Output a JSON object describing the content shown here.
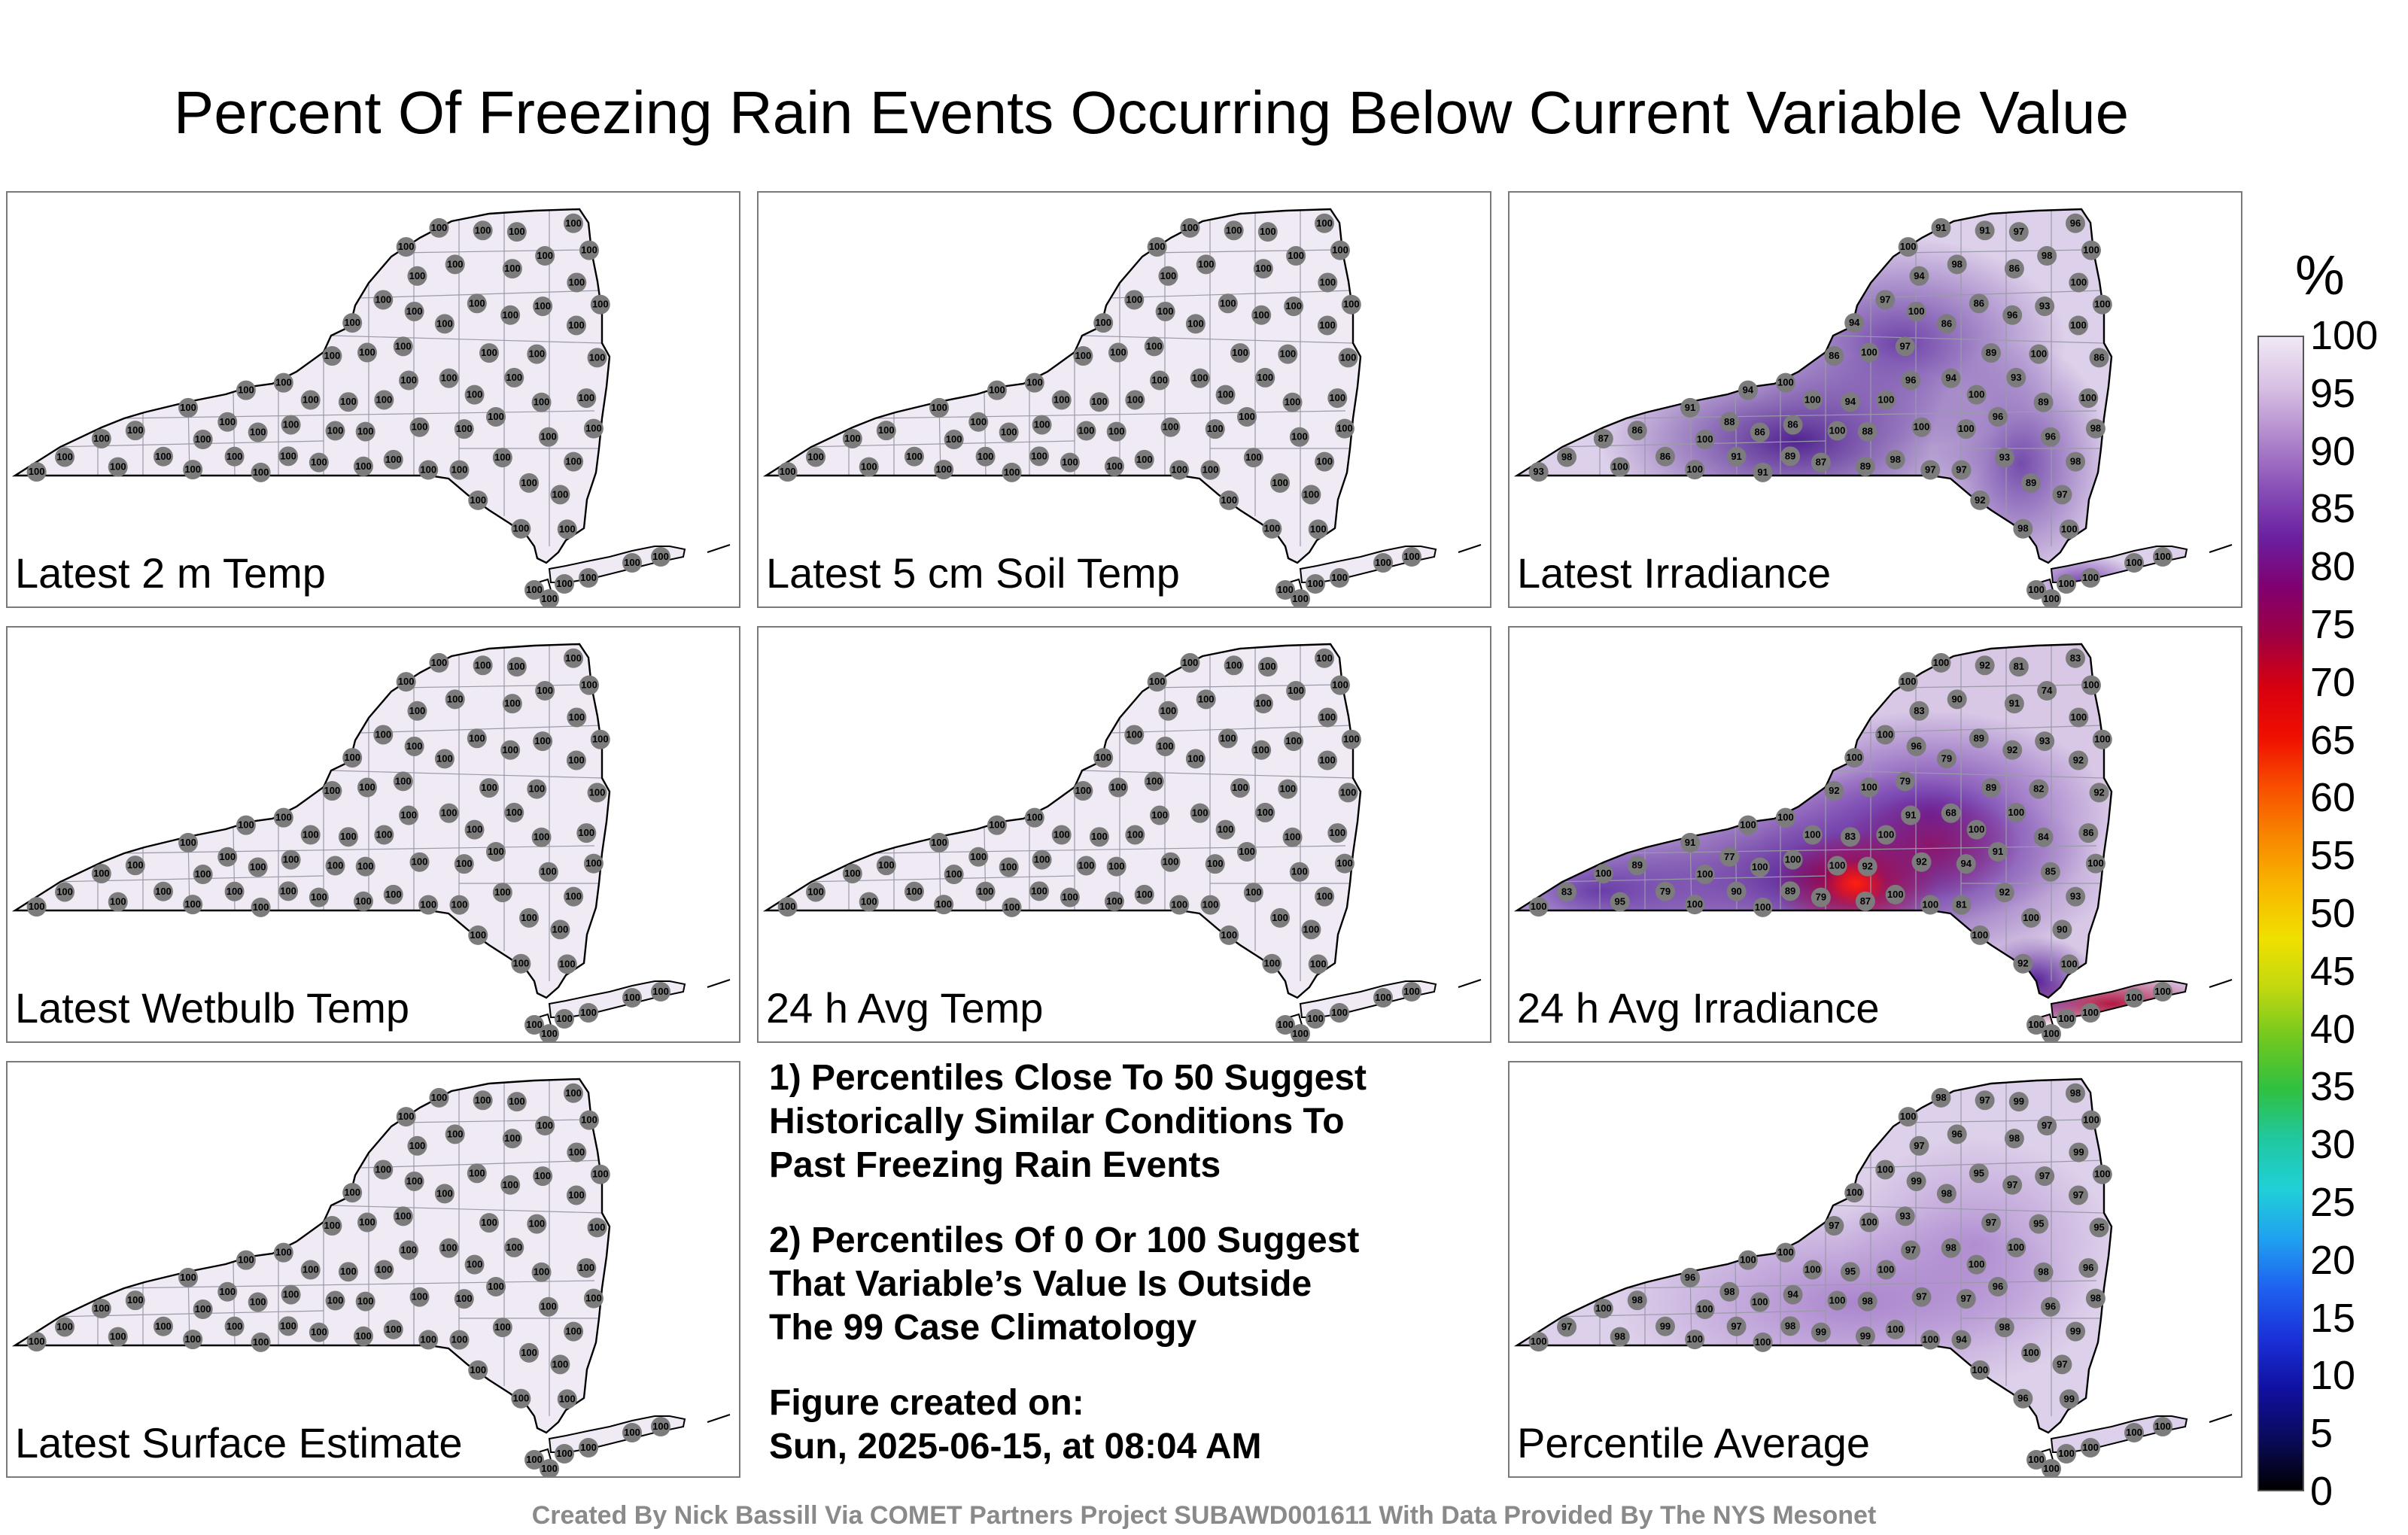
{
  "title": "Percent Of Freezing Rain Events Occurring Below Current Variable Value",
  "panels": [
    {
      "label": "Latest 2 m Temp",
      "mode": "flat",
      "values": []
    },
    {
      "label": "Latest 5 cm Soil Temp",
      "mode": "flat",
      "values": []
    },
    {
      "label": "Latest Irradiance",
      "mode": "irr",
      "values": [
        "100",
        "100",
        "100",
        "100",
        "100",
        "100",
        "100",
        "100",
        "100",
        "100",
        "100",
        "100",
        "98",
        "98",
        "97",
        "93",
        "86",
        "89",
        "86",
        "96",
        "96",
        "100",
        "100",
        "97",
        "97",
        "94",
        "86",
        "86",
        "89",
        "98",
        "98",
        "97",
        "94",
        "89",
        "91",
        "94",
        "93",
        "96",
        "88",
        "91",
        "86",
        "86",
        "88",
        "87",
        "89",
        "96",
        "96",
        "91",
        "98",
        "89",
        "86",
        "86",
        "91",
        "98",
        "97",
        "97",
        "94",
        "93",
        "91",
        "92",
        "94",
        "86",
        "87",
        "93",
        "98",
        "100"
      ]
    },
    {
      "label": "Latest Wetbulb Temp",
      "mode": "flat",
      "values": []
    },
    {
      "label": "24 h Avg Temp",
      "mode": "flat",
      "values": []
    },
    {
      "label": "24 h Avg Irradiance",
      "mode": "avgirr",
      "values": [
        "100",
        "100",
        "100",
        "100",
        "100",
        "100",
        "100",
        "96",
        "95",
        "94",
        "92",
        "92",
        "90",
        "92",
        "90",
        "93",
        "91",
        "89",
        "92",
        "91",
        "85",
        "82",
        "86",
        "79",
        "81",
        "83",
        "89",
        "79",
        "84",
        "83",
        "74",
        "81",
        "68",
        "89",
        "91",
        "83",
        "92",
        "91",
        "92",
        "90",
        "89",
        "79",
        "77",
        "79",
        "87",
        "83",
        "92",
        "92",
        "93",
        "100",
        "92"
      ]
    },
    {
      "label": "Percentile Average",
      "mode": "avg",
      "values": [
        "100",
        "100",
        "100",
        "100",
        "100",
        "99",
        "99",
        "99",
        "98",
        "97",
        "97",
        "97",
        "96",
        "96",
        "97",
        "97",
        "98",
        "98",
        "97",
        "97",
        "96",
        "95",
        "96",
        "93",
        "94",
        "97",
        "98",
        "99",
        "98",
        "97",
        "97",
        "99",
        "98",
        "97",
        "96",
        "95",
        "98",
        "96",
        "98",
        "97",
        "95",
        "98",
        "98",
        "99",
        "99",
        "98",
        "97",
        "97",
        "99",
        "100",
        "95",
        "94",
        "98",
        "98",
        "100"
      ]
    },
    {
      "label": "Latest Surface Estimate",
      "mode": "flat",
      "values": []
    }
  ],
  "station_default": "100",
  "notes": {
    "note1": [
      "1) Percentiles Close To 50 Suggest",
      "Historically Similar Conditions To",
      "Past Freezing Rain Events"
    ],
    "note2": [
      "2) Percentiles Of 0 Or 100 Suggest",
      "That Variable’s Value Is Outside",
      "The 99 Case Climatology"
    ],
    "created_label": "Figure created on:",
    "created_value": "Sun, 2025-06-15, at 08:04 AM"
  },
  "colorbar": {
    "unit": "%",
    "ticks": [
      "100",
      "95",
      "90",
      "85",
      "80",
      "75",
      "70",
      "65",
      "60",
      "55",
      "50",
      "45",
      "40",
      "35",
      "30",
      "25",
      "20",
      "15",
      "10",
      "5",
      "0"
    ],
    "colors": [
      "#000000",
      "#0a0a5a",
      "#1010a0",
      "#1a30d8",
      "#1e60f0",
      "#20a0f0",
      "#20d0d8",
      "#20c8a0",
      "#30c040",
      "#70c820",
      "#c0d810",
      "#f0e000",
      "#f8b800",
      "#f88800",
      "#f85000",
      "#f01000",
      "#d80010",
      "#a00040",
      "#800070",
      "#6a20a0",
      "#8a50b8",
      "#b088cc",
      "#d8c0e4",
      "#f0e8f4"
    ],
    "colors_mode": "gradient stops from 0 (bottom) to 100 (top)"
  },
  "footer": "Created By Nick Bassill Via COMET Partners Project SUBAWD001611 With Data Provided By The NYS Mesonet"
}
